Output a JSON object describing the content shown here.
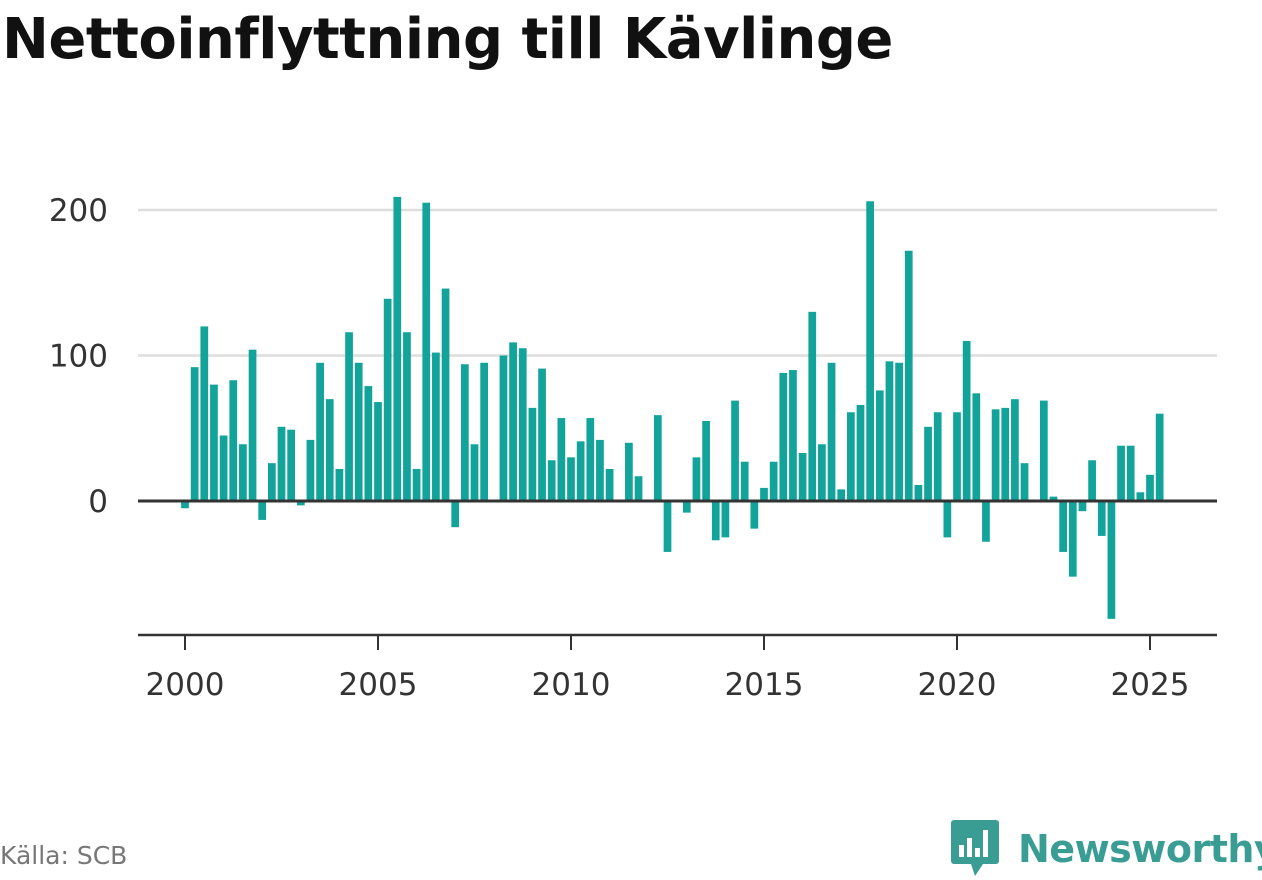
{
  "title": "Nettoinflyttning till Kävlinge",
  "source": "Källa: SCB",
  "brand": {
    "name": "Newsworthy",
    "logo_icon": "bar-chart-speech-bubble-icon"
  },
  "colors": {
    "bar": "#12a39b",
    "zero_line": "#333333",
    "grid": "#dddddd",
    "axis": "#333333",
    "brand": "#3a9d93"
  },
  "chart_data": {
    "type": "bar",
    "title": "Nettoinflyttning till Kävlinge",
    "xlabel": "",
    "ylabel": "",
    "x_start": 2000.0,
    "x_step": 0.25,
    "ylim": [
      -92,
      210
    ],
    "xlim": [
      1998.75,
      2026.75
    ],
    "y_ticks": [
      0,
      100,
      200
    ],
    "x_ticks": [
      2000,
      2005,
      2010,
      2015,
      2020,
      2025
    ],
    "grid": true,
    "legend": "none",
    "values": [
      -5,
      92,
      120,
      80,
      45,
      83,
      39,
      104,
      -13,
      26,
      51,
      49,
      -3,
      42,
      95,
      70,
      22,
      116,
      95,
      79,
      68,
      139,
      209,
      116,
      22,
      205,
      102,
      146,
      -18,
      94,
      39,
      95,
      0,
      100,
      109,
      105,
      64,
      91,
      28,
      57,
      30,
      41,
      57,
      42,
      22,
      0,
      40,
      17,
      0,
      59,
      -35,
      0,
      -8,
      30,
      55,
      -27,
      -25,
      69,
      27,
      -19,
      9,
      27,
      88,
      90,
      33,
      130,
      39,
      95,
      8,
      61,
      66,
      206,
      76,
      96,
      95,
      172,
      11,
      51,
      61,
      -25,
      61,
      110,
      74,
      -28,
      63,
      64,
      70,
      26,
      0,
      69,
      3,
      -35,
      -52,
      -7,
      28,
      -24,
      -81,
      38,
      38,
      6,
      18,
      60
    ]
  }
}
